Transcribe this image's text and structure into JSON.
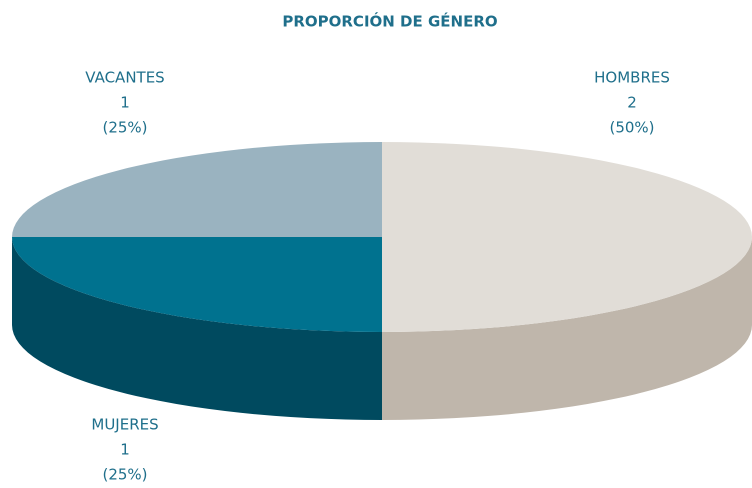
{
  "chart_data": {
    "type": "pie3d",
    "title": "PROPORCIÓN DE GÉNERO",
    "categories": [
      "HOMBRES",
      "MUJERES",
      "VACANTES"
    ],
    "values": [
      2,
      1,
      1
    ],
    "percent_labels": [
      "(50%)",
      "(25%)",
      "(25%)"
    ],
    "colors": [
      "#e1ddd7",
      "#00728f",
      "#9ab3c0"
    ],
    "side_colors": [
      "#bfb6ab",
      "#004a5f",
      "#004a5f"
    ]
  }
}
